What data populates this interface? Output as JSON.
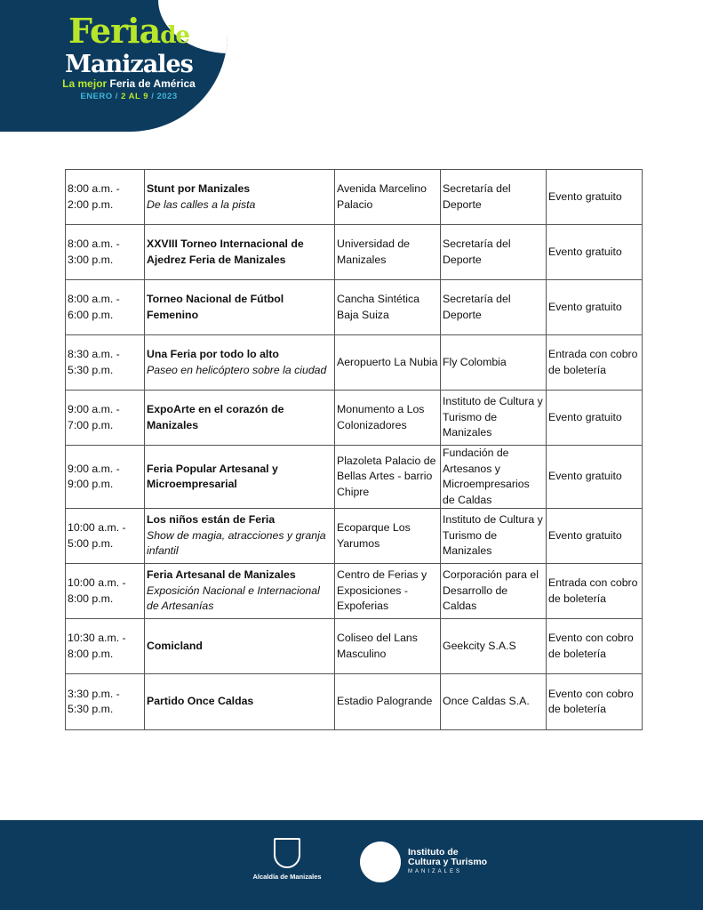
{
  "header": {
    "logo": {
      "feria": "Feria",
      "de": "de",
      "manizales": "Manizales",
      "tag_green": "La mejor",
      "tag_white": "Feria de América",
      "date_a": "ENERO /",
      "date_b": "2 AL 9",
      "date_c": "/ 2023"
    },
    "colors": {
      "navy": "#0d3b5e",
      "green": "#b8e62a",
      "cyan": "#3fb6d9"
    }
  },
  "rows": [
    {
      "time": "8:00 a.m. - 2:00 p.m.",
      "title": "Stunt por Manizales",
      "subtitle": "De las calles a la pista",
      "place": "Avenida Marcelino Palacio",
      "organizer": "Secretaría del Deporte",
      "cost": "Evento gratuito"
    },
    {
      "time": "8:00 a.m. - 3:00 p.m.",
      "title": "XXVIII Torneo Internacional de Ajedrez Feria de Manizales",
      "subtitle": "",
      "place": "Universidad de Manizales",
      "organizer": "Secretaría del Deporte",
      "cost": "Evento gratuito"
    },
    {
      "time": "8:00 a.m. - 6:00 p.m.",
      "title": "Torneo Nacional de Fútbol Femenino",
      "subtitle": "",
      "place": "Cancha Sintética Baja Suiza",
      "organizer": "Secretaría del Deporte",
      "cost": "Evento gratuito"
    },
    {
      "time": "8:30 a.m. - 5:30 p.m.",
      "title": "Una Feria por todo lo alto",
      "subtitle": "Paseo en helicóptero sobre la ciudad",
      "place": "Aeropuerto La Nubia",
      "organizer": "Fly Colombia",
      "cost": "Entrada con cobro de boletería"
    },
    {
      "time": "9:00 a.m. - 7:00 p.m.",
      "title": "ExpoArte en el corazón de Manizales",
      "subtitle": "",
      "place": "Monumento a Los Colonizadores",
      "organizer": "Instituto de Cultura y Turismo de Manizales",
      "cost": "Evento gratuito"
    },
    {
      "time": "9:00 a.m. - 9:00 p.m.",
      "title": "Feria Popular Artesanal y Microempresarial",
      "subtitle": "",
      "place": "Plazoleta Palacio de Bellas Artes - barrio Chipre",
      "organizer": "Fundación de Artesanos y Microempresarios de Caldas",
      "cost": "Evento gratuito"
    },
    {
      "time": "10:00 a.m. - 5:00 p.m.",
      "title": "Los niños están de Feria",
      "subtitle": "Show de magia, atracciones y granja infantil",
      "place": "Ecoparque Los Yarumos",
      "organizer": "Instituto de Cultura y Turismo de Manizales",
      "cost": "Evento gratuito"
    },
    {
      "time": "10:00 a.m. - 8:00 p.m.",
      "title": "Feria Artesanal de Manizales",
      "subtitle": "Exposición Nacional e Internacional de Artesanías",
      "place": "Centro de Ferias y Exposiciones - Expoferias",
      "organizer": "Corporación para el Desarrollo de Caldas",
      "cost": "Entrada con cobro de boletería"
    },
    {
      "time": "10:30 a.m. - 8:00 p.m.",
      "title": "Comicland",
      "subtitle": "",
      "place": "Coliseo del Lans Masculino",
      "organizer": "Geekcity S.A.S",
      "cost": "Evento con cobro de boletería"
    },
    {
      "time": "3:30 p.m. - 5:30 p.m.",
      "title": "Partido Once Caldas",
      "subtitle": "",
      "place": "Estadio Palogrande",
      "organizer": "Once Caldas S.A.",
      "cost": "Evento con cobro de boletería"
    }
  ],
  "footer": {
    "alcaldia": "Alcaldía de Manizales",
    "inst_line1": "Instituto de",
    "inst_line2": "Cultura y Turismo",
    "inst_line3": "MANIZALES"
  }
}
